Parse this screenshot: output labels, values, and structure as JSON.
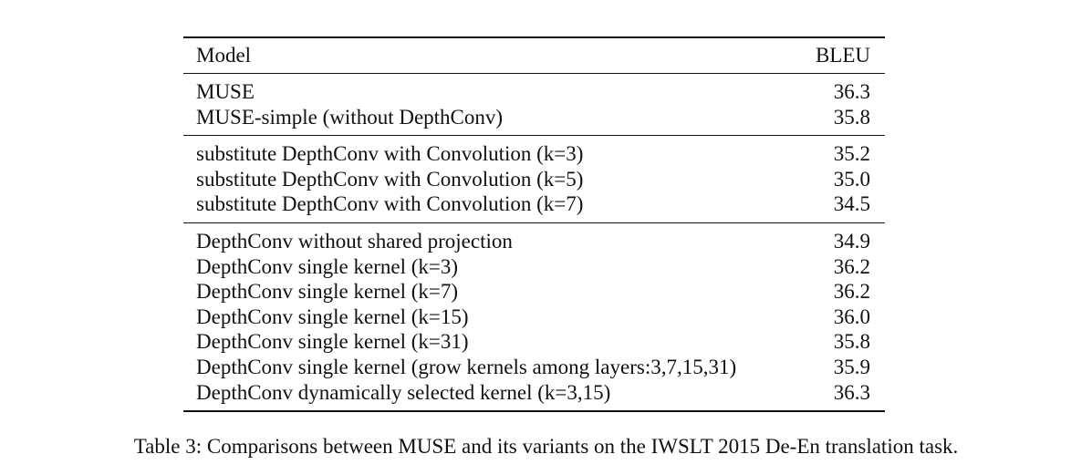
{
  "table": {
    "header": {
      "model": "Model",
      "bleu": "BLEU"
    },
    "groups": [
      [
        {
          "model": "MUSE",
          "bleu": "36.3"
        },
        {
          "model": "MUSE-simple (without DepthConv)",
          "bleu": "35.8"
        }
      ],
      [
        {
          "model": "substitute DepthConv with Convolution (k=3)",
          "bleu": "35.2"
        },
        {
          "model": "substitute DepthConv with Convolution (k=5)",
          "bleu": "35.0"
        },
        {
          "model": "substitute DepthConv with Convolution (k=7)",
          "bleu": "34.5"
        }
      ],
      [
        {
          "model": "DepthConv without shared projection",
          "bleu": "34.9"
        },
        {
          "model": "DepthConv single kernel (k=3)",
          "bleu": "36.2"
        },
        {
          "model": "DepthConv single kernel (k=7)",
          "bleu": "36.2"
        },
        {
          "model": "DepthConv single kernel (k=15)",
          "bleu": "36.0"
        },
        {
          "model": "DepthConv single kernel (k=31)",
          "bleu": "35.8"
        },
        {
          "model": "DepthConv single kernel (grow kernels among layers:3,7,15,31)",
          "bleu": "35.9"
        },
        {
          "model": "DepthConv dynamically selected kernel (k=3,15)",
          "bleu": "36.3"
        }
      ]
    ]
  },
  "caption": "Table 3: Comparisons between MUSE and its variants on the IWSLT 2015 De-En translation task."
}
